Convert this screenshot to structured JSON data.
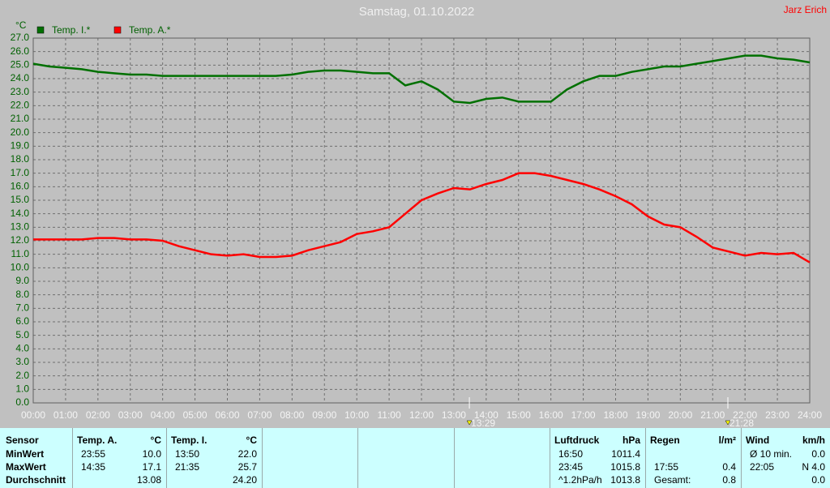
{
  "chart_data": {
    "type": "line",
    "title": "Samstag, 01.10.2022",
    "author": "Jarz Erich",
    "y_label": "°C",
    "x": [
      0,
      0.5,
      1,
      1.5,
      2,
      2.5,
      3,
      3.5,
      4,
      4.5,
      5,
      5.5,
      6,
      6.5,
      7,
      7.5,
      8,
      8.5,
      9,
      9.5,
      10,
      10.5,
      11,
      11.5,
      12,
      12.5,
      13,
      13.5,
      14,
      14.5,
      15,
      15.5,
      16,
      16.5,
      17,
      17.5,
      18,
      18.5,
      19,
      19.5,
      20,
      20.5,
      21,
      21.5,
      22,
      22.5,
      23,
      23.5,
      24
    ],
    "series": [
      {
        "name": "Temp. I.*",
        "color": "#007000",
        "values": [
          25.1,
          24.9,
          24.8,
          24.7,
          24.5,
          24.4,
          24.3,
          24.3,
          24.2,
          24.2,
          24.2,
          24.2,
          24.2,
          24.2,
          24.2,
          24.2,
          24.3,
          24.5,
          24.6,
          24.6,
          24.5,
          24.4,
          24.4,
          23.5,
          23.8,
          23.2,
          22.3,
          22.2,
          22.5,
          22.6,
          22.3,
          22.3,
          22.3,
          23.2,
          23.8,
          24.2,
          24.2,
          24.5,
          24.7,
          24.9,
          24.9,
          25.1,
          25.3,
          25.5,
          25.7,
          25.7,
          25.5,
          25.4,
          25.2
        ]
      },
      {
        "name": "Temp. A.*",
        "color": "#ff0000",
        "values": [
          12.1,
          12.1,
          12.1,
          12.1,
          12.2,
          12.2,
          12.1,
          12.1,
          12.0,
          11.6,
          11.3,
          11.0,
          10.9,
          11.0,
          10.8,
          10.8,
          10.9,
          11.3,
          11.6,
          11.9,
          12.5,
          12.7,
          13.0,
          14.0,
          15.0,
          15.5,
          15.9,
          15.8,
          16.2,
          16.5,
          17.0,
          17.0,
          16.8,
          16.5,
          16.2,
          15.8,
          15.3,
          14.7,
          13.8,
          13.2,
          13.0,
          12.3,
          11.5,
          11.2,
          10.9,
          11.1,
          11.0,
          11.1,
          10.4
        ]
      }
    ],
    "xlim": [
      0,
      24
    ],
    "xticks": [
      {
        "value": 0,
        "label": "00:00"
      },
      {
        "value": 1,
        "label": "01:00"
      },
      {
        "value": 2,
        "label": "02:00"
      },
      {
        "value": 3,
        "label": "03:00"
      },
      {
        "value": 4,
        "label": "04:00"
      },
      {
        "value": 5,
        "label": "05:00"
      },
      {
        "value": 6,
        "label": "06:00"
      },
      {
        "value": 7,
        "label": "07:00"
      },
      {
        "value": 8,
        "label": "08:00"
      },
      {
        "value": 9,
        "label": "09:00"
      },
      {
        "value": 10,
        "label": "10:00"
      },
      {
        "value": 11,
        "label": "11:00"
      },
      {
        "value": 12,
        "label": "12:00"
      },
      {
        "value": 13,
        "label": "13:00"
      },
      {
        "value": 14,
        "label": "14:00"
      },
      {
        "value": 15,
        "label": "15:00"
      },
      {
        "value": 16,
        "label": "16:00"
      },
      {
        "value": 17,
        "label": "17:00"
      },
      {
        "value": 18,
        "label": "18:00"
      },
      {
        "value": 19,
        "label": "19:00"
      },
      {
        "value": 20,
        "label": "20:00"
      },
      {
        "value": 21,
        "label": "21:00"
      },
      {
        "value": 22,
        "label": "22:00"
      },
      {
        "value": 23,
        "label": "23:00"
      },
      {
        "value": 24,
        "label": "24:00"
      }
    ],
    "ylim": [
      0,
      27
    ],
    "yticks": [
      {
        "value": 0,
        "label": "0.0"
      },
      {
        "value": 1,
        "label": "1.0"
      },
      {
        "value": 2,
        "label": "2.0"
      },
      {
        "value": 3,
        "label": "3.0"
      },
      {
        "value": 4,
        "label": "4.0"
      },
      {
        "value": 5,
        "label": "5.0"
      },
      {
        "value": 6,
        "label": "6.0"
      },
      {
        "value": 7,
        "label": "7.0"
      },
      {
        "value": 8,
        "label": "8.0"
      },
      {
        "value": 9,
        "label": "9.0"
      },
      {
        "value": 10,
        "label": "10.0"
      },
      {
        "value": 11,
        "label": "11.0"
      },
      {
        "value": 12,
        "label": "12.0"
      },
      {
        "value": 13,
        "label": "13.0"
      },
      {
        "value": 14,
        "label": "14.0"
      },
      {
        "value": 15,
        "label": "15.0"
      },
      {
        "value": 16,
        "label": "16.0"
      },
      {
        "value": 17,
        "label": "17.0"
      },
      {
        "value": 18,
        "label": "18.0"
      },
      {
        "value": 19,
        "label": "19.0"
      },
      {
        "value": 20,
        "label": "20.0"
      },
      {
        "value": 21,
        "label": "21.0"
      },
      {
        "value": 22,
        "label": "22.0"
      },
      {
        "value": 23,
        "label": "23.0"
      },
      {
        "value": 24,
        "label": "24.0"
      },
      {
        "value": 25,
        "label": "25.0"
      },
      {
        "value": 26,
        "label": "26.0"
      },
      {
        "value": 27,
        "label": "27.0"
      }
    ],
    "grid": true,
    "markers": [
      {
        "x": 13.48,
        "label": "13:29"
      },
      {
        "x": 21.47,
        "label": "21:28"
      }
    ]
  },
  "stats": {
    "row_labels": [
      "Sensor",
      "MinWert",
      "MaxWert",
      "Durchschnitt"
    ],
    "panels": [
      {
        "header": "Temp. A.",
        "unit": "°C",
        "rows": [
          [
            "23:55",
            "10.0"
          ],
          [
            "14:35",
            "17.1"
          ],
          [
            null,
            "13.08"
          ]
        ]
      },
      {
        "header": "Temp. I.",
        "unit": "°C",
        "rows": [
          [
            "13:50",
            "22.0"
          ],
          [
            "21:35",
            "25.7"
          ],
          [
            null,
            "24.20"
          ]
        ]
      },
      {
        "header": "Luftdruck",
        "unit": "hPa",
        "rows": [
          [
            "16:50",
            "1011.4"
          ],
          [
            "23:45",
            "1015.8"
          ],
          [
            "^1.2hPa/h",
            "1013.8"
          ]
        ]
      },
      {
        "header": "Regen",
        "unit": "l/m²",
        "rows": [
          [
            null,
            null
          ],
          [
            "17:55",
            "0.4"
          ],
          [
            "Gesamt:",
            "0.8"
          ]
        ]
      },
      {
        "header": "Wind",
        "unit": "km/h",
        "rows": [
          [
            "Ø 10 min.",
            "0.0"
          ],
          [
            "22:05",
            "N 4.0"
          ],
          [
            null,
            "0.0"
          ]
        ]
      }
    ]
  }
}
